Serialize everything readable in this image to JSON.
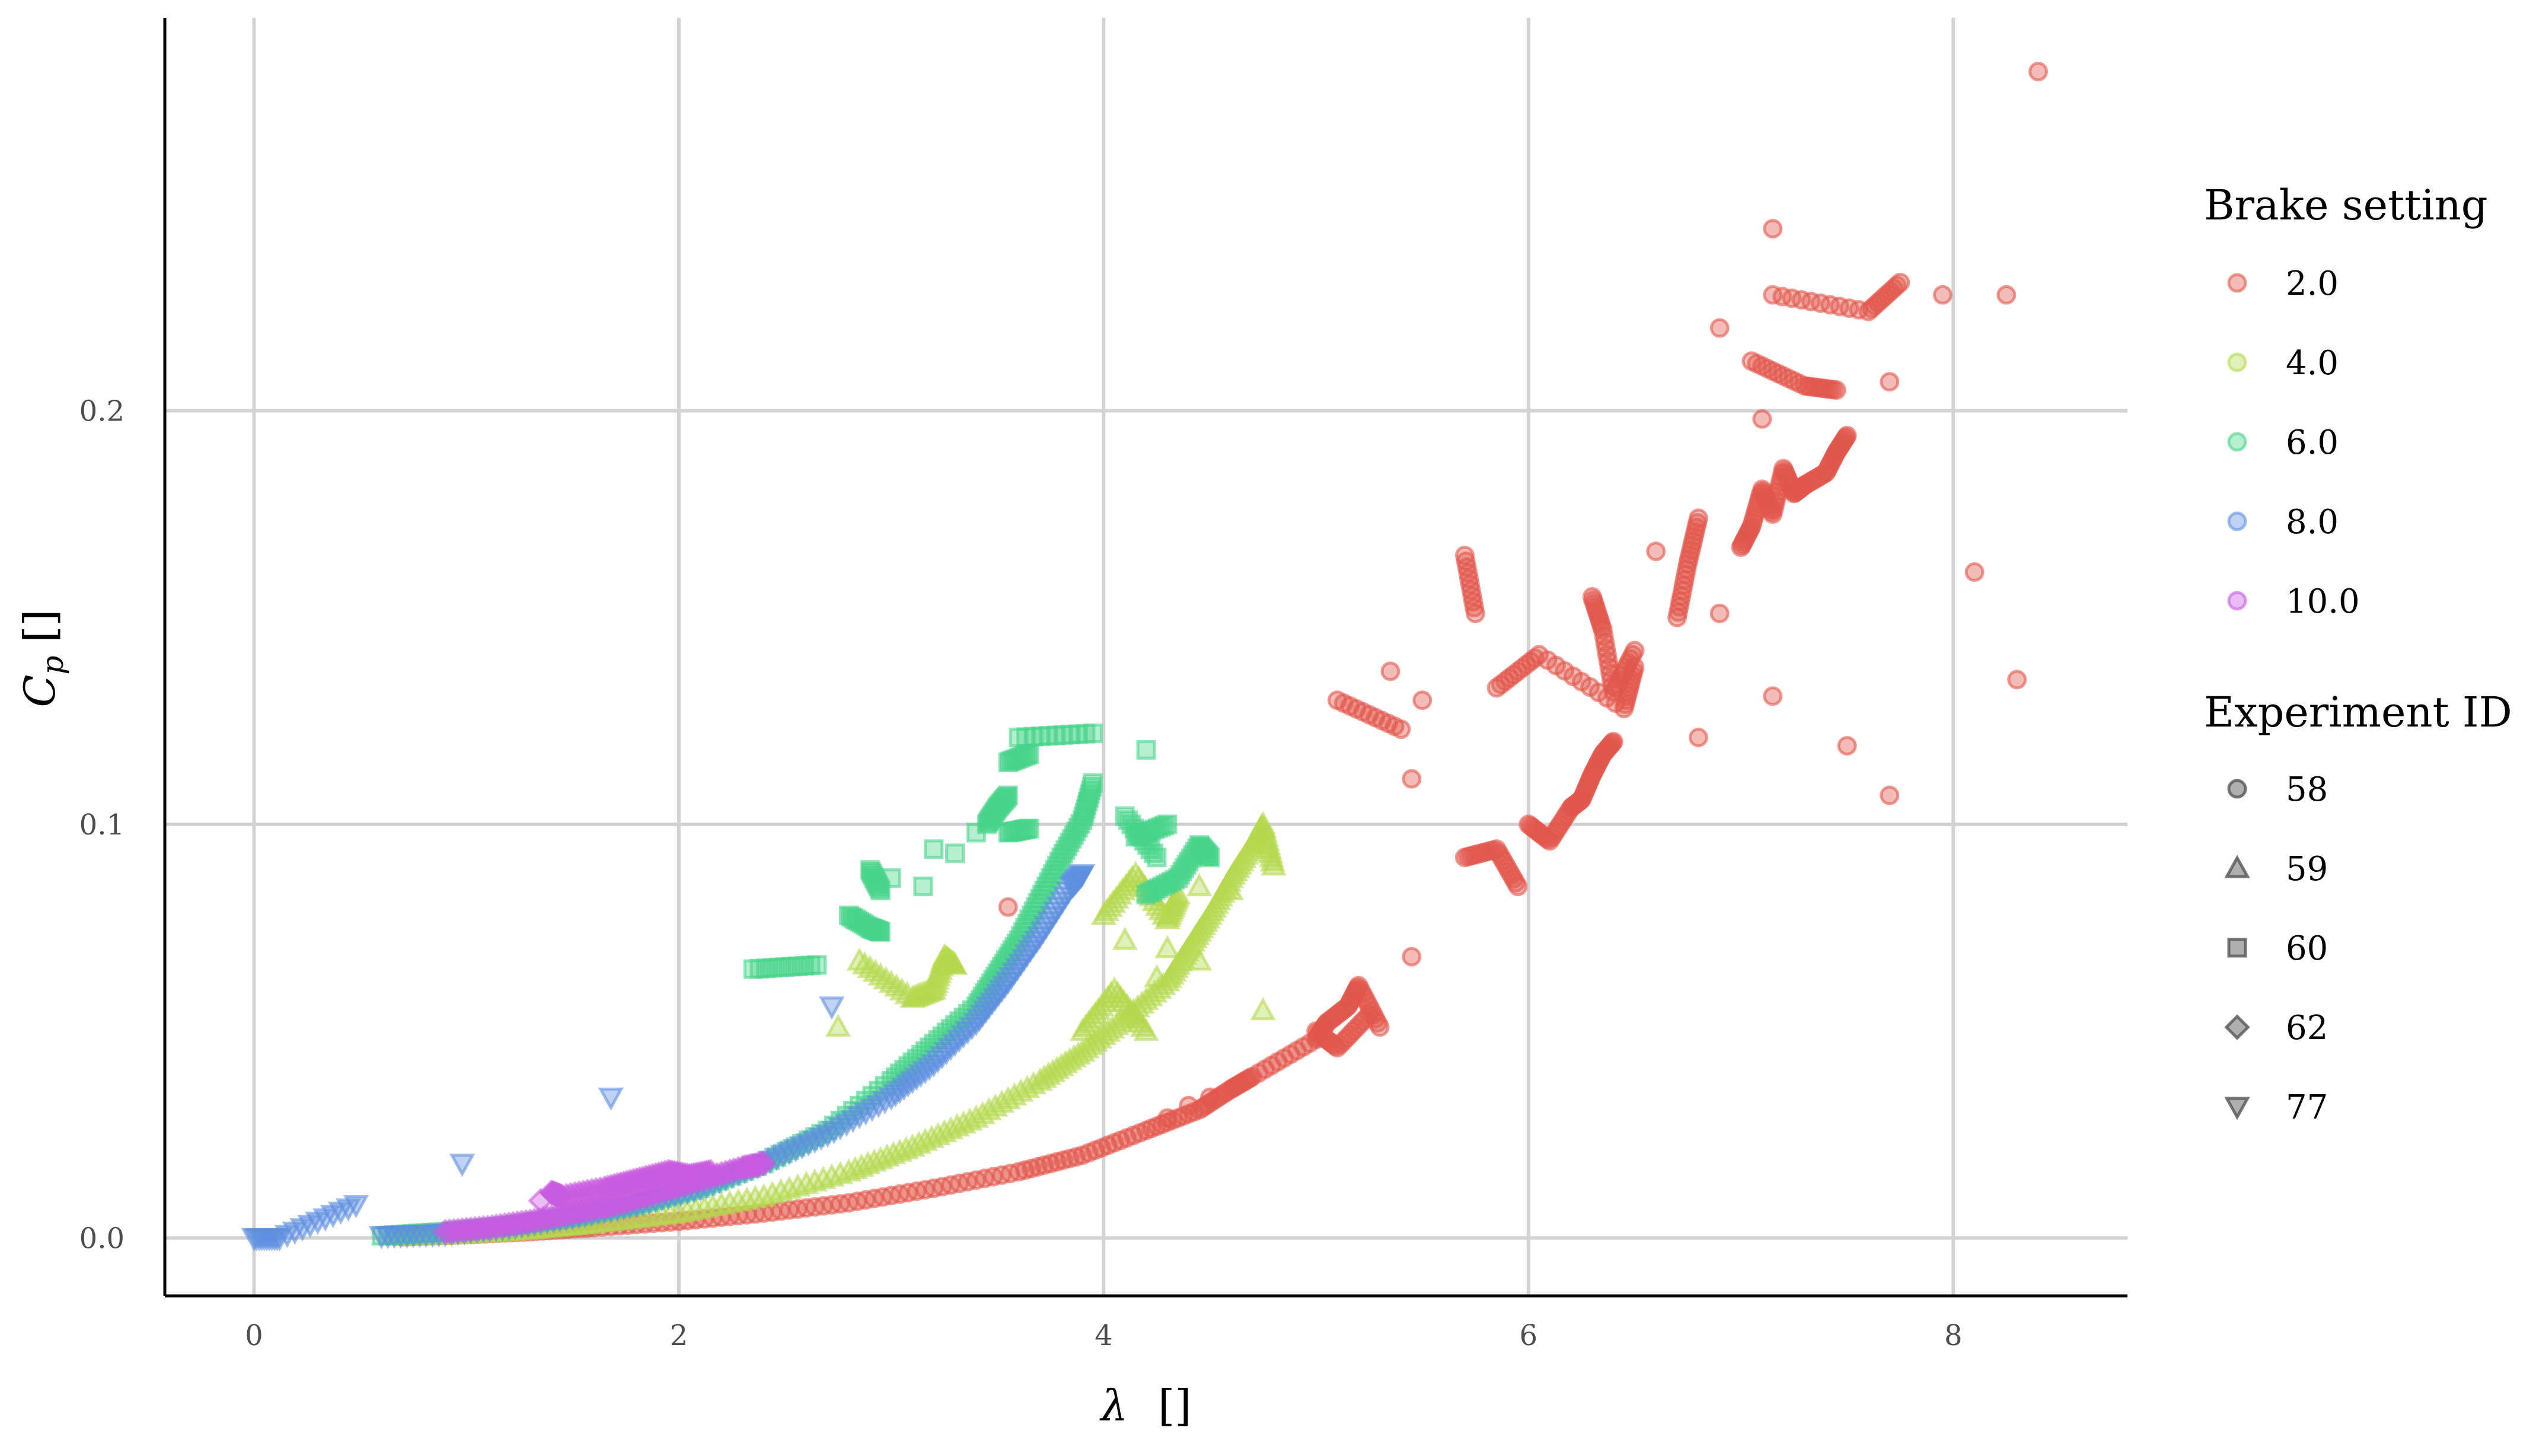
{
  "chart_data": {
    "type": "scatter",
    "title": "",
    "xlabel_symbol": "λ",
    "xlabel_unit": "[]",
    "ylabel_symbol": "C",
    "ylabel_sub": "p",
    "ylabel_unit": "[]",
    "xlim": [
      -0.42,
      8.82
    ],
    "ylim": [
      -0.014,
      0.295
    ],
    "x_ticks": [
      0,
      2,
      4,
      6,
      8
    ],
    "x_tick_labels": [
      "0",
      "2",
      "4",
      "6",
      "8"
    ],
    "y_ticks": [
      0.0,
      0.1,
      0.2
    ],
    "y_tick_labels": [
      "0.0",
      "0.1",
      "0.2"
    ],
    "grid": true,
    "legend_position": "right",
    "legend": {
      "color_title": "Brake setting",
      "color_entries": [
        {
          "label": "2.0",
          "color": "#e2574c"
        },
        {
          "label": "4.0",
          "color": "#b5d84f"
        },
        {
          "label": "6.0",
          "color": "#48d48a"
        },
        {
          "label": "8.0",
          "color": "#5e8fe0"
        },
        {
          "label": "10.0",
          "color": "#c85ae0"
        }
      ],
      "shape_title": "Experiment ID",
      "shape_entries": [
        {
          "label": "58",
          "shape": "circle"
        },
        {
          "label": "59",
          "shape": "triangle-up"
        },
        {
          "label": "60",
          "shape": "square"
        },
        {
          "label": "62",
          "shape": "diamond"
        },
        {
          "label": "77",
          "shape": "triangle-down"
        }
      ]
    },
    "series": [
      {
        "brake": "2.0",
        "experiment": "58",
        "shape": "circle",
        "color": "#e2574c",
        "points": [
          [
            0.7,
            0.0003
          ],
          [
            1.0,
            0.0008
          ],
          [
            1.3,
            0.0015
          ],
          [
            1.6,
            0.0025
          ],
          [
            2.0,
            0.004
          ],
          [
            2.4,
            0.006
          ],
          [
            2.8,
            0.0085
          ],
          [
            3.2,
            0.012
          ],
          [
            3.6,
            0.016
          ],
          [
            3.9,
            0.02
          ],
          [
            4.2,
            0.026
          ],
          [
            4.45,
            0.031
          ],
          [
            4.6,
            0.036
          ],
          [
            4.7,
            0.039
          ],
          [
            5.0,
            0.048
          ],
          [
            5.05,
            0.052
          ],
          [
            5.15,
            0.056
          ],
          [
            5.2,
            0.061
          ],
          [
            5.3,
            0.051
          ],
          [
            5.45,
            0.068
          ],
          [
            5.1,
            0.13
          ],
          [
            5.4,
            0.123
          ],
          [
            5.35,
            0.137
          ],
          [
            5.7,
            0.092
          ],
          [
            5.85,
            0.094
          ],
          [
            5.95,
            0.085
          ],
          [
            6.0,
            0.1
          ],
          [
            6.1,
            0.096
          ],
          [
            6.2,
            0.104
          ],
          [
            6.25,
            0.106
          ],
          [
            6.3,
            0.112
          ],
          [
            6.35,
            0.117
          ],
          [
            6.4,
            0.12
          ],
          [
            6.3,
            0.155
          ],
          [
            6.35,
            0.147
          ],
          [
            6.4,
            0.132
          ],
          [
            6.5,
            0.142
          ],
          [
            6.6,
            0.166
          ],
          [
            6.7,
            0.15
          ],
          [
            6.75,
            0.163
          ],
          [
            6.8,
            0.174
          ],
          [
            6.9,
            0.151
          ],
          [
            7.0,
            0.167
          ],
          [
            7.05,
            0.172
          ],
          [
            7.1,
            0.181
          ],
          [
            7.15,
            0.175
          ],
          [
            7.2,
            0.186
          ],
          [
            7.25,
            0.18
          ],
          [
            7.3,
            0.182
          ],
          [
            7.4,
            0.185
          ],
          [
            7.45,
            0.19
          ],
          [
            7.5,
            0.194
          ],
          [
            7.1,
            0.198
          ],
          [
            7.05,
            0.212
          ],
          [
            7.3,
            0.206
          ],
          [
            7.45,
            0.205
          ],
          [
            7.15,
            0.228
          ],
          [
            7.6,
            0.224
          ],
          [
            7.75,
            0.231
          ],
          [
            7.15,
            0.244
          ],
          [
            7.7,
            0.207
          ],
          [
            6.9,
            0.22
          ],
          [
            8.25,
            0.228
          ],
          [
            7.95,
            0.228
          ],
          [
            8.4,
            0.282
          ],
          [
            8.1,
            0.161
          ],
          [
            8.3,
            0.135
          ],
          [
            7.7,
            0.107
          ],
          [
            7.5,
            0.119
          ],
          [
            7.15,
            0.131
          ],
          [
            6.8,
            0.121
          ],
          [
            5.7,
            0.165
          ],
          [
            5.75,
            0.151
          ],
          [
            5.85,
            0.133
          ],
          [
            6.05,
            0.141
          ],
          [
            6.45,
            0.128
          ],
          [
            6.5,
            0.138
          ],
          [
            5.45,
            0.111
          ],
          [
            5.5,
            0.13
          ],
          [
            5.0,
            0.05
          ],
          [
            5.1,
            0.046
          ],
          [
            5.25,
            0.054
          ],
          [
            4.5,
            0.034
          ],
          [
            4.4,
            0.032
          ],
          [
            4.3,
            0.029
          ],
          [
            3.55,
            0.08
          ]
        ]
      },
      {
        "brake": "4.0",
        "experiment": "59",
        "shape": "triangle-up",
        "color": "#b5d84f",
        "points": [
          [
            0.7,
            0.0004
          ],
          [
            1.0,
            0.001
          ],
          [
            1.3,
            0.002
          ],
          [
            1.6,
            0.0035
          ],
          [
            2.0,
            0.006
          ],
          [
            2.4,
            0.01
          ],
          [
            2.8,
            0.016
          ],
          [
            3.1,
            0.022
          ],
          [
            3.4,
            0.029
          ],
          [
            3.7,
            0.038
          ],
          [
            3.9,
            0.045
          ],
          [
            4.1,
            0.053
          ],
          [
            4.3,
            0.062
          ],
          [
            4.4,
            0.07
          ],
          [
            4.5,
            0.078
          ],
          [
            4.6,
            0.087
          ],
          [
            4.7,
            0.095
          ],
          [
            4.75,
            0.1
          ],
          [
            4.8,
            0.09
          ],
          [
            4.6,
            0.084
          ],
          [
            4.45,
            0.085
          ],
          [
            4.3,
            0.07
          ],
          [
            4.25,
            0.063
          ],
          [
            4.1,
            0.072
          ],
          [
            4.0,
            0.078
          ],
          [
            4.15,
            0.088
          ],
          [
            4.3,
            0.077
          ],
          [
            4.35,
            0.083
          ],
          [
            2.75,
            0.051
          ],
          [
            2.85,
            0.067
          ],
          [
            3.1,
            0.058
          ],
          [
            3.2,
            0.06
          ],
          [
            3.25,
            0.068
          ],
          [
            3.3,
            0.066
          ],
          [
            3.9,
            0.05
          ],
          [
            4.05,
            0.06
          ],
          [
            4.2,
            0.05
          ],
          [
            4.75,
            0.055
          ],
          [
            4.45,
            0.067
          ]
        ]
      },
      {
        "brake": "6.0",
        "experiment": "60",
        "shape": "square",
        "color": "#48d48a",
        "points": [
          [
            0.6,
            0.0005
          ],
          [
            0.9,
            0.0015
          ],
          [
            1.2,
            0.003
          ],
          [
            1.5,
            0.005
          ],
          [
            1.8,
            0.008
          ],
          [
            2.1,
            0.012
          ],
          [
            2.4,
            0.018
          ],
          [
            2.7,
            0.026
          ],
          [
            3.0,
            0.038
          ],
          [
            3.2,
            0.047
          ],
          [
            3.4,
            0.056
          ],
          [
            3.5,
            0.064
          ],
          [
            3.6,
            0.072
          ],
          [
            3.7,
            0.082
          ],
          [
            3.8,
            0.092
          ],
          [
            3.9,
            0.101
          ],
          [
            3.95,
            0.11
          ],
          [
            3.6,
            0.121
          ],
          [
            3.95,
            0.122
          ],
          [
            3.55,
            0.115
          ],
          [
            3.65,
            0.117
          ],
          [
            3.45,
            0.1
          ],
          [
            3.5,
            0.104
          ],
          [
            3.55,
            0.107
          ],
          [
            3.4,
            0.098
          ],
          [
            3.3,
            0.093
          ],
          [
            3.2,
            0.094
          ],
          [
            3.15,
            0.085
          ],
          [
            3.0,
            0.087
          ],
          [
            2.9,
            0.089
          ],
          [
            2.95,
            0.084
          ],
          [
            2.8,
            0.078
          ],
          [
            2.9,
            0.075
          ],
          [
            2.95,
            0.074
          ],
          [
            2.35,
            0.065
          ],
          [
            2.65,
            0.066
          ],
          [
            3.55,
            0.098
          ],
          [
            3.65,
            0.099
          ],
          [
            4.15,
            0.097
          ],
          [
            4.3,
            0.1
          ],
          [
            4.1,
            0.102
          ],
          [
            4.25,
            0.092
          ],
          [
            4.2,
            0.083
          ],
          [
            4.35,
            0.087
          ],
          [
            4.45,
            0.095
          ],
          [
            4.5,
            0.092
          ],
          [
            4.2,
            0.118
          ]
        ]
      },
      {
        "brake": "8.0",
        "experiment": "77",
        "shape": "triangle-down",
        "color": "#5e8fe0",
        "points": [
          [
            0.0,
            0.0
          ],
          [
            0.12,
            0.0
          ],
          [
            0.48,
            0.008
          ],
          [
            0.98,
            0.018
          ],
          [
            1.68,
            0.034
          ],
          [
            2.72,
            0.056
          ],
          [
            0.6,
            0.0005
          ],
          [
            0.9,
            0.001
          ],
          [
            1.2,
            0.0025
          ],
          [
            1.5,
            0.005
          ],
          [
            1.8,
            0.008
          ],
          [
            2.1,
            0.012
          ],
          [
            2.4,
            0.018
          ],
          [
            2.7,
            0.025
          ],
          [
            3.0,
            0.034
          ],
          [
            3.2,
            0.042
          ],
          [
            3.4,
            0.052
          ],
          [
            3.55,
            0.062
          ],
          [
            3.7,
            0.073
          ],
          [
            3.85,
            0.085
          ],
          [
            3.9,
            0.088
          ]
        ]
      },
      {
        "brake": "10.0",
        "experiment": "62",
        "shape": "diamond",
        "color": "#c85ae0",
        "points": [
          [
            0.9,
            0.0015
          ],
          [
            1.1,
            0.0025
          ],
          [
            1.3,
            0.004
          ],
          [
            1.5,
            0.006
          ],
          [
            1.7,
            0.008
          ],
          [
            1.9,
            0.011
          ],
          [
            2.1,
            0.014
          ],
          [
            2.3,
            0.017
          ],
          [
            2.4,
            0.018
          ],
          [
            1.4,
            0.011
          ],
          [
            1.45,
            0.01
          ],
          [
            1.65,
            0.012
          ],
          [
            1.8,
            0.014
          ],
          [
            1.95,
            0.016
          ],
          [
            2.05,
            0.015
          ],
          [
            2.15,
            0.016
          ],
          [
            1.35,
            0.009
          ]
        ]
      }
    ]
  }
}
